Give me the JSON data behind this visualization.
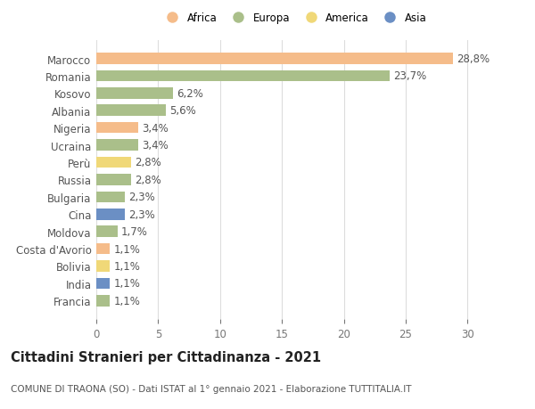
{
  "countries": [
    "Francia",
    "India",
    "Bolivia",
    "Costa d'Avorio",
    "Moldova",
    "Cina",
    "Bulgaria",
    "Russia",
    "Perù",
    "Ucraina",
    "Nigeria",
    "Albania",
    "Kosovo",
    "Romania",
    "Marocco"
  ],
  "values": [
    1.1,
    1.1,
    1.1,
    1.1,
    1.7,
    2.3,
    2.3,
    2.8,
    2.8,
    3.4,
    3.4,
    5.6,
    6.2,
    23.7,
    28.8
  ],
  "continents": [
    "Europa",
    "Asia",
    "America",
    "Africa",
    "Europa",
    "Asia",
    "Europa",
    "Europa",
    "America",
    "Europa",
    "Africa",
    "Europa",
    "Europa",
    "Europa",
    "Africa"
  ],
  "colors": {
    "Africa": "#F5BC8A",
    "Europa": "#AABF8A",
    "America": "#F0D878",
    "Asia": "#6B8FC4"
  },
  "legend_order": [
    "Africa",
    "Europa",
    "America",
    "Asia"
  ],
  "title": "Cittadini Stranieri per Cittadinanza - 2021",
  "subtitle": "COMUNE DI TRAONA (SO) - Dati ISTAT al 1° gennaio 2021 - Elaborazione TUTTITALIA.IT",
  "xlim": [
    0,
    32
  ],
  "xticks": [
    0,
    5,
    10,
    15,
    20,
    25,
    30
  ],
  "background_color": "#ffffff",
  "grid_color": "#dddddd",
  "bar_height": 0.65,
  "label_fontsize": 8.5,
  "tick_fontsize": 8.5,
  "title_fontsize": 10.5,
  "subtitle_fontsize": 7.5
}
